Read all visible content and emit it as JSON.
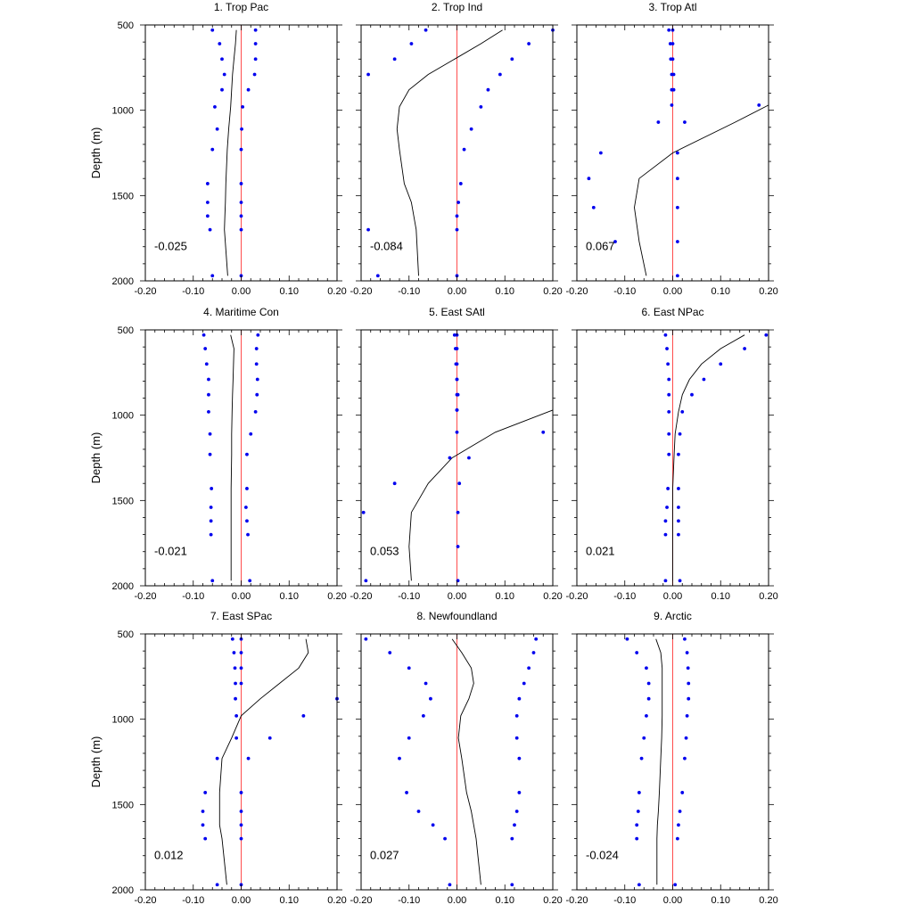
{
  "chart_data": {
    "type": "multi-panel vertical profile",
    "y_label": "Depth (m)",
    "x_ticks": [
      "-0.20",
      "-0.10",
      "0.00",
      "0.10",
      "0.20"
    ],
    "y_ticks": [
      "500",
      "1000",
      "1500",
      "2000"
    ],
    "xlim": [
      -0.2,
      0.2
    ],
    "ylim": [
      500,
      2000
    ],
    "y_inverted": true,
    "colors": {
      "zero_line": "#ff4d4d",
      "points": "#0000ee",
      "profile": "#000000",
      "frame": "#000000"
    },
    "panels": [
      {
        "title": "1. Trop Pac",
        "annotation": "-0.025",
        "depth": [
          530,
          610,
          700,
          790,
          880,
          980,
          1110,
          1230,
          1430,
          1540,
          1620,
          1700,
          1970
        ],
        "line": [
          -0.01,
          -0.012,
          -0.015,
          -0.018,
          -0.02,
          -0.022,
          -0.026,
          -0.029,
          -0.032,
          -0.033,
          -0.034,
          -0.035,
          -0.028
        ],
        "left": [
          -0.06,
          -0.045,
          -0.04,
          -0.035,
          -0.04,
          -0.055,
          -0.05,
          -0.06,
          -0.07,
          -0.07,
          -0.07,
          -0.065,
          -0.06
        ],
        "right": [
          0.03,
          0.03,
          0.03,
          0.028,
          0.015,
          0.003,
          0.001,
          0.0,
          0.0,
          0.0,
          0.0,
          0.0,
          0.0
        ]
      },
      {
        "title": "2. Trop Ind",
        "annotation": "-0.084",
        "depth": [
          530,
          610,
          700,
          790,
          880,
          980,
          1110,
          1230,
          1430,
          1540,
          1620,
          1700,
          1970
        ],
        "line": [
          0.095,
          0.05,
          -0.005,
          -0.06,
          -0.1,
          -0.12,
          -0.125,
          -0.12,
          -0.11,
          -0.095,
          -0.09,
          -0.085,
          -0.08
        ],
        "left": [
          -0.065,
          -0.095,
          -0.13,
          -0.185,
          null,
          null,
          null,
          null,
          null,
          null,
          null,
          -0.185,
          -0.165
        ],
        "right": [
          0.2,
          0.15,
          0.115,
          0.09,
          0.065,
          0.05,
          0.03,
          0.015,
          0.008,
          0.003,
          0.0,
          0.0,
          0.0
        ]
      },
      {
        "title": "3. Trop Atl",
        "annotation": "0.067",
        "depth": [
          530,
          610,
          700,
          790,
          880,
          970,
          1070,
          1250,
          1400,
          1570,
          1770,
          1970
        ],
        "line": [
          null,
          null,
          null,
          null,
          null,
          0.2,
          0.13,
          0.0,
          -0.07,
          -0.08,
          -0.07,
          -0.055
        ],
        "left": [
          -0.008,
          -0.005,
          -0.004,
          -0.002,
          -0.002,
          -0.002,
          -0.03,
          -0.15,
          -0.175,
          -0.165,
          -0.12,
          null
        ],
        "right": [
          0.0,
          0.0,
          0.0,
          0.002,
          0.002,
          0.18,
          0.025,
          0.01,
          0.01,
          0.01,
          0.01,
          0.01
        ]
      },
      {
        "title": "4. Maritime Con",
        "annotation": "-0.021",
        "depth": [
          530,
          610,
          700,
          790,
          880,
          980,
          1110,
          1230,
          1430,
          1540,
          1620,
          1700,
          1970
        ],
        "line": [
          -0.022,
          -0.015,
          -0.016,
          -0.017,
          -0.018,
          -0.019,
          -0.02,
          -0.02,
          -0.021,
          -0.021,
          -0.021,
          -0.021,
          -0.021
        ],
        "left": [
          -0.078,
          -0.075,
          -0.072,
          -0.068,
          -0.068,
          -0.068,
          -0.065,
          -0.065,
          -0.062,
          -0.063,
          -0.063,
          -0.063,
          -0.06
        ],
        "right": [
          0.035,
          0.032,
          0.032,
          0.034,
          0.033,
          0.03,
          0.02,
          0.012,
          0.012,
          0.01,
          0.012,
          0.014,
          0.018
        ]
      },
      {
        "title": "5. East SAtl",
        "annotation": "0.053",
        "depth": [
          530,
          610,
          700,
          790,
          880,
          970,
          1100,
          1250,
          1400,
          1570,
          1770,
          1970
        ],
        "line": [
          null,
          null,
          null,
          null,
          null,
          0.2,
          0.08,
          -0.01,
          -0.06,
          -0.095,
          -0.1,
          -0.095
        ],
        "left": [
          -0.005,
          -0.003,
          -0.002,
          0.0,
          0.0,
          0.0,
          0.0,
          -0.015,
          -0.13,
          -0.195,
          null,
          -0.19
        ],
        "right": [
          0.0,
          0.0,
          0.0,
          0.0,
          0.002,
          0.0,
          0.18,
          0.025,
          0.005,
          0.002,
          0.002,
          0.002
        ]
      },
      {
        "title": "6. East NPac",
        "annotation": "0.021",
        "depth": [
          530,
          610,
          700,
          790,
          880,
          980,
          1110,
          1230,
          1430,
          1540,
          1620,
          1700,
          1970
        ],
        "line": [
          0.15,
          0.1,
          0.06,
          0.035,
          0.02,
          0.012,
          0.005,
          0.003,
          0.0,
          0.0,
          0.0,
          0.0,
          0.0
        ],
        "left": [
          -0.015,
          -0.012,
          -0.01,
          -0.008,
          -0.008,
          -0.008,
          -0.008,
          -0.008,
          -0.01,
          -0.012,
          -0.015,
          -0.015,
          -0.015
        ],
        "right": [
          0.195,
          0.15,
          0.1,
          0.065,
          0.04,
          0.02,
          0.015,
          0.012,
          0.012,
          0.012,
          0.012,
          0.012,
          0.015
        ]
      },
      {
        "title": "7. East SPac",
        "annotation": "0.012",
        "depth": [
          530,
          610,
          700,
          790,
          880,
          980,
          1110,
          1230,
          1430,
          1540,
          1620,
          1700,
          1970
        ],
        "line": [
          0.135,
          0.14,
          0.12,
          0.08,
          0.04,
          0.0,
          -0.02,
          -0.04,
          -0.045,
          -0.045,
          -0.045,
          -0.04,
          -0.03
        ],
        "left": [
          -0.018,
          -0.015,
          -0.013,
          -0.012,
          -0.012,
          -0.01,
          -0.01,
          -0.05,
          -0.075,
          -0.08,
          -0.08,
          -0.075,
          -0.05
        ],
        "right": [
          0.0,
          0.0,
          0.0,
          0.0,
          0.2,
          0.13,
          0.06,
          0.015,
          0.0,
          0.0,
          0.0,
          0.0,
          0.0
        ]
      },
      {
        "title": "8. Newfoundland",
        "annotation": "0.027",
        "depth": [
          530,
          610,
          700,
          790,
          880,
          980,
          1110,
          1230,
          1430,
          1540,
          1620,
          1700,
          1970
        ],
        "line": [
          -0.01,
          0.01,
          0.03,
          0.035,
          0.025,
          0.008,
          0.003,
          0.01,
          0.02,
          0.03,
          0.035,
          0.04,
          0.05
        ],
        "left": [
          -0.19,
          -0.14,
          -0.1,
          -0.065,
          -0.055,
          -0.07,
          -0.1,
          -0.12,
          -0.105,
          -0.08,
          -0.05,
          -0.025,
          -0.015
        ],
        "right": [
          0.165,
          0.16,
          0.15,
          0.14,
          0.13,
          0.125,
          0.125,
          0.13,
          0.13,
          0.125,
          0.12,
          0.115,
          0.115
        ]
      },
      {
        "title": "9. Arctic",
        "annotation": "-0.024",
        "depth": [
          530,
          610,
          700,
          790,
          880,
          980,
          1110,
          1230,
          1430,
          1540,
          1620,
          1700,
          1970
        ],
        "line": [
          -0.035,
          -0.025,
          -0.022,
          -0.022,
          -0.022,
          -0.022,
          -0.023,
          -0.025,
          -0.028,
          -0.03,
          -0.032,
          -0.033,
          -0.033
        ],
        "left": [
          -0.095,
          -0.075,
          -0.055,
          -0.05,
          -0.05,
          -0.055,
          -0.06,
          -0.065,
          -0.07,
          -0.072,
          -0.075,
          -0.075,
          -0.07
        ],
        "right": [
          0.025,
          0.03,
          0.032,
          0.033,
          0.033,
          0.03,
          0.028,
          0.025,
          0.02,
          0.015,
          0.012,
          0.01,
          0.005
        ]
      }
    ]
  }
}
